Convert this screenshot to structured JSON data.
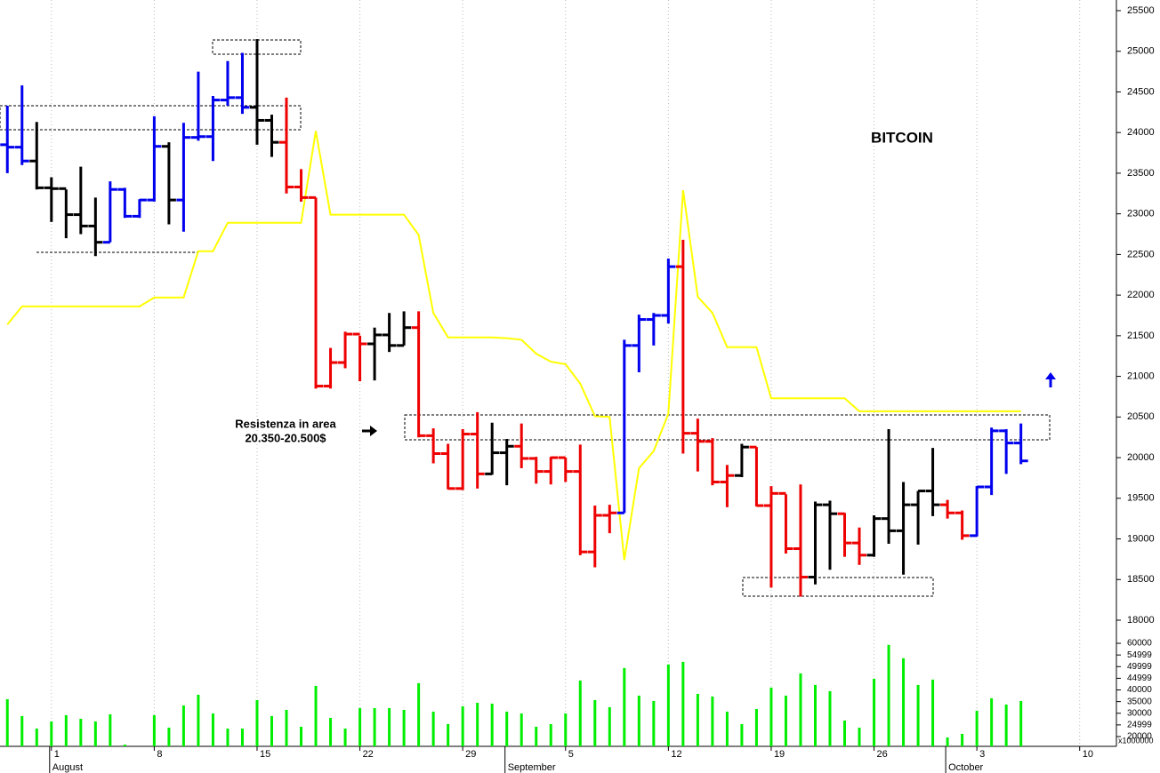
{
  "chart_data": [
    {
      "type": "ohlc",
      "title": "BITCOIN",
      "annotations": [
        "Resistenza in area",
        "20.350-20.500$"
      ],
      "x": [
        -3,
        -2,
        -1,
        0,
        1,
        2,
        3,
        4,
        5,
        6,
        7,
        8,
        9,
        10,
        11,
        12,
        13,
        14,
        15,
        16,
        17,
        18,
        19,
        20,
        21,
        22,
        23,
        24,
        25,
        26,
        27,
        28,
        29,
        30,
        31,
        32,
        33,
        34,
        35,
        36,
        37,
        38,
        39,
        40,
        41,
        42,
        43,
        44,
        45,
        46,
        47,
        48,
        49,
        50,
        51,
        52,
        53,
        54,
        55,
        56,
        57,
        58,
        59,
        60,
        61,
        62,
        63,
        64,
        65,
        66
      ],
      "open": [
        23850,
        23820,
        23650,
        23320,
        23310,
        22990,
        22850,
        22650,
        23300,
        22970,
        23170,
        23830,
        23170,
        23940,
        23950,
        24400,
        24430,
        24310,
        24150,
        23880,
        23330,
        23200,
        20880,
        21170,
        21520,
        21400,
        21510,
        21380,
        21600,
        20270,
        20050,
        19620,
        20290,
        19800,
        20060,
        20140,
        19990,
        19830,
        20000,
        19830,
        18840,
        19290,
        19320,
        21380,
        21700,
        21750,
        22350,
        20300,
        20200,
        19700,
        19780,
        20130,
        19410,
        19560,
        18880,
        18530,
        19420,
        19310,
        18950,
        18800,
        19250,
        19100,
        19420,
        19590,
        19420,
        19320,
        19040,
        19640,
        20330,
        20180
      ],
      "high": [
        24330,
        24580,
        24130,
        23450,
        23300,
        23580,
        23200,
        23400,
        23320,
        23180,
        24200,
        23880,
        24120,
        24750,
        24450,
        24880,
        24980,
        25150,
        24220,
        24430,
        23550,
        23200,
        21350,
        21550,
        21500,
        21600,
        21780,
        21800,
        21800,
        20360,
        20170,
        20350,
        20560,
        20430,
        20230,
        20420,
        20010,
        20010,
        20000,
        20160,
        19410,
        19420,
        21450,
        21760,
        21780,
        22450,
        22680,
        20480,
        20240,
        19910,
        20170,
        20130,
        19650,
        19550,
        19670,
        19460,
        19470,
        19320,
        19140,
        19290,
        20350,
        19700,
        19590,
        20120,
        19480,
        19350,
        19650,
        20370,
        20350,
        20420
      ],
      "low": [
        23500,
        23600,
        23300,
        22900,
        22700,
        22750,
        22480,
        22650,
        22950,
        22950,
        23150,
        22870,
        22780,
        23900,
        23650,
        24330,
        24230,
        23850,
        23700,
        23250,
        23150,
        20850,
        20850,
        21100,
        20940,
        20950,
        21300,
        21380,
        20250,
        19930,
        19610,
        19600,
        19620,
        19790,
        19660,
        19870,
        19680,
        19670,
        19700,
        18800,
        18650,
        19070,
        19320,
        21050,
        21380,
        21650,
        20050,
        19830,
        19660,
        19390,
        19760,
        19400,
        18400,
        18820,
        18290,
        18440,
        18620,
        18780,
        18680,
        18780,
        18940,
        18560,
        18930,
        19280,
        19250,
        18990,
        19030,
        19540,
        19800,
        19920
      ],
      "close": [
        23820,
        23650,
        23320,
        23310,
        22990,
        22850,
        22650,
        23300,
        22970,
        23170,
        23830,
        23170,
        23940,
        23950,
        24400,
        24430,
        24310,
        24150,
        23880,
        23330,
        23200,
        20880,
        21170,
        21520,
        21400,
        21510,
        21380,
        21600,
        20270,
        20050,
        19620,
        20290,
        19800,
        20060,
        20140,
        19990,
        19830,
        20000,
        19830,
        18840,
        19290,
        19320,
        21380,
        21700,
        21750,
        22350,
        20300,
        20200,
        19700,
        19780,
        20130,
        19410,
        19560,
        18880,
        18530,
        19420,
        19310,
        18950,
        18800,
        19250,
        19100,
        19420,
        19590,
        19420,
        19320,
        19040,
        19640,
        20330,
        20180,
        19960
      ],
      "colors": [
        "#0000ee",
        "#0000ee",
        "#000000",
        "#000000",
        "#000000",
        "#000000",
        "#000000",
        "#0000ee",
        "#0000ee",
        "#0000ee",
        "#0000ee",
        "#000000",
        "#0000ee",
        "#0000ee",
        "#0000ee",
        "#0000ee",
        "#0000ee",
        "#000000",
        "#000000",
        "#ee0000",
        "#ee0000",
        "#ee0000",
        "#ee0000",
        "#ee0000",
        "#ee0000",
        "#000000",
        "#000000",
        "#000000",
        "#ee0000",
        "#ee0000",
        "#ee0000",
        "#ee0000",
        "#ee0000",
        "#000000",
        "#000000",
        "#ee0000",
        "#ee0000",
        "#ee0000",
        "#ee0000",
        "#ee0000",
        "#ee0000",
        "#ee0000",
        "#0000ee",
        "#0000ee",
        "#0000ee",
        "#0000ee",
        "#ee0000",
        "#ee0000",
        "#ee0000",
        "#ee0000",
        "#000000",
        "#ee0000",
        "#ee0000",
        "#ee0000",
        "#ee0000",
        "#000000",
        "#000000",
        "#ee0000",
        "#ee0000",
        "#000000",
        "#000000",
        "#000000",
        "#000000",
        "#000000",
        "#ee0000",
        "#ee0000",
        "#0000ee",
        "#0000ee",
        "#0000ee",
        "#0000ee"
      ],
      "line": {
        "color": "#ffff00",
        "values": [
          21640,
          21860,
          21860,
          21860,
          21860,
          21860,
          21860,
          21860,
          21860,
          21860,
          21970,
          21970,
          21970,
          22540,
          22540,
          22890,
          22890,
          22890,
          22890,
          22890,
          22890,
          24020,
          22990,
          22990,
          22990,
          22990,
          22990,
          22990,
          22740,
          21780,
          21480,
          21480,
          21480,
          21480,
          21470,
          21450,
          21280,
          21180,
          21150,
          20910,
          20510,
          20500,
          18740,
          19870,
          20080,
          20540,
          23290,
          21980,
          21780,
          21360,
          21360,
          21360,
          20730,
          20730,
          20730,
          20730,
          20730,
          20730,
          20570,
          20570,
          20570,
          20570,
          20570,
          20570,
          20570,
          20570,
          20570,
          20570,
          20570,
          20570
        ]
      },
      "xlim": [
        -3.5,
        72.5
      ],
      "xticks": [
        {
          "value": 0,
          "label": "1"
        },
        {
          "value": 7,
          "label": "8"
        },
        {
          "value": 14,
          "label": "15"
        },
        {
          "value": 21,
          "label": "22"
        },
        {
          "value": 28,
          "label": "29"
        },
        {
          "value": 35,
          "label": "5"
        },
        {
          "value": 42,
          "label": "12"
        },
        {
          "value": 49,
          "label": "19"
        },
        {
          "value": 56,
          "label": "26"
        },
        {
          "value": 63,
          "label": "3"
        },
        {
          "value": 70,
          "label": "10"
        }
      ],
      "months": [
        {
          "value": 0,
          "label": "August"
        },
        {
          "value": 31,
          "label": "September"
        },
        {
          "value": 61,
          "label": "October"
        }
      ],
      "ylim": [
        17847,
        25631
      ],
      "yticks": [
        18000,
        18500,
        19000,
        19500,
        20000,
        20500,
        21000,
        21500,
        22000,
        22500,
        23000,
        23500,
        24000,
        24500,
        25000,
        25500
      ],
      "grid": true
    },
    {
      "type": "bar",
      "color": "#00ee00",
      "values": [
        36030,
        28780,
        23440,
        26490,
        29160,
        27630,
        26490,
        29540,
        16560,
        null,
        29160,
        23820,
        33360,
        37940,
        29920,
        23440,
        23440,
        35650,
        28780,
        31450,
        24200,
        41760,
        28020,
        23440,
        32210,
        32210,
        32210,
        31450,
        42900,
        30690,
        25340,
        32980,
        34500,
        34120,
        30690,
        29920,
        24200,
        25340,
        29920,
        44050,
        35650,
        32600,
        49390,
        37560,
        35270,
        50920,
        52060,
        38320,
        37180,
        30690,
        25340,
        31830,
        40990,
        37560,
        47100,
        42140,
        39470,
        26870,
        23820,
        44810,
        59320,
        53590,
        42140,
        44430,
        19620,
        21150,
        31070,
        36410,
        33740,
        35270
      ],
      "ylim": [
        15800,
        62300
      ],
      "yticks": [
        20000,
        24999,
        30000,
        35000,
        40000,
        44999,
        49999,
        54999,
        60000
      ],
      "unit_label": "x1000000"
    }
  ]
}
